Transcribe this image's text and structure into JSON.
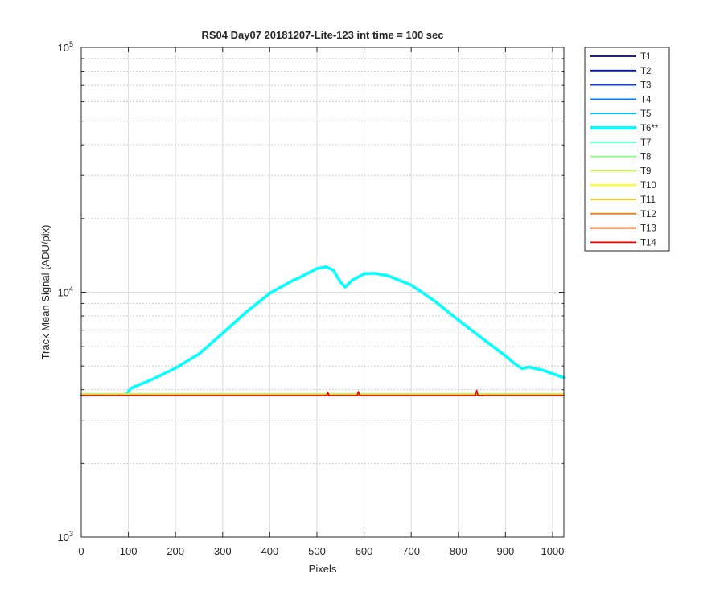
{
  "chart_data": {
    "type": "line",
    "title": "RS04 Day07 20181207-Lite-123 int time = 100 sec",
    "xlabel": "Pixels",
    "ylabel": "Track Mean Signal (ADU/pix)",
    "xlim": [
      0,
      1024
    ],
    "ylim": [
      1000,
      100000
    ],
    "yscale": "log",
    "grid": true,
    "legend_position": "outside-right",
    "xticks": [
      0,
      100,
      200,
      300,
      400,
      500,
      600,
      700,
      800,
      900,
      1000
    ],
    "xtick_labels": [
      "0",
      "100",
      "200",
      "300",
      "400",
      "500",
      "600",
      "700",
      "800",
      "900",
      "1000"
    ],
    "yticks": [
      1000,
      10000,
      100000
    ],
    "ytick_labels": [
      {
        "base": "10",
        "exp": "3"
      },
      {
        "base": "10",
        "exp": "4"
      },
      {
        "base": "10",
        "exp": "5"
      }
    ],
    "series": [
      {
        "name": "T1",
        "color": "#00008f",
        "highlight": false,
        "x": [
          0,
          1024
        ],
        "y": [
          3780,
          3780
        ]
      },
      {
        "name": "T2",
        "color": "#0010c8",
        "highlight": false,
        "x": [
          0,
          1024
        ],
        "y": [
          3780,
          3780
        ]
      },
      {
        "name": "T3",
        "color": "#0040ff",
        "highlight": false,
        "x": [
          0,
          1024
        ],
        "y": [
          3785,
          3785
        ]
      },
      {
        "name": "T4",
        "color": "#0080ff",
        "highlight": false,
        "x": [
          0,
          1024
        ],
        "y": [
          3790,
          3790
        ]
      },
      {
        "name": "T5",
        "color": "#00c0ff",
        "highlight": false,
        "x": [
          0,
          1024
        ],
        "y": [
          3790,
          3790
        ]
      },
      {
        "name": "T6**",
        "color": "#00ffff",
        "highlight": true,
        "x": [
          0,
          95,
          105,
          150,
          200,
          250,
          300,
          350,
          400,
          450,
          460,
          500,
          520,
          535,
          550,
          560,
          575,
          600,
          620,
          650,
          700,
          750,
          800,
          850,
          900,
          920,
          935,
          950,
          980,
          1024
        ],
        "y": [
          3800,
          3810,
          4050,
          4400,
          4900,
          5600,
          6800,
          8300,
          9900,
          11200,
          11400,
          12500,
          12700,
          12300,
          11000,
          10500,
          11200,
          11900,
          11950,
          11700,
          10700,
          9200,
          7700,
          6500,
          5500,
          5100,
          4880,
          4950,
          4800,
          4480
        ]
      },
      {
        "name": "T7",
        "color": "#40ffbf",
        "highlight": false,
        "x": [
          0,
          1024
        ],
        "y": [
          3800,
          3800
        ]
      },
      {
        "name": "T8",
        "color": "#80ff80",
        "highlight": false,
        "x": [
          0,
          1024
        ],
        "y": [
          3850,
          3850
        ]
      },
      {
        "name": "T9",
        "color": "#bfff40",
        "highlight": false,
        "x": [
          0,
          1024
        ],
        "y": [
          3840,
          3840
        ]
      },
      {
        "name": "T10",
        "color": "#ffff00",
        "highlight": false,
        "x": [
          0,
          1024
        ],
        "y": [
          3810,
          3810
        ]
      },
      {
        "name": "T11",
        "color": "#ffbf00",
        "highlight": false,
        "x": [
          0,
          1024
        ],
        "y": [
          3800,
          3800
        ]
      },
      {
        "name": "T12",
        "color": "#ff8000",
        "highlight": false,
        "x": [
          0,
          1024
        ],
        "y": [
          3795,
          3795
        ]
      },
      {
        "name": "T13",
        "color": "#ff4000",
        "highlight": false,
        "x": [
          0,
          1024
        ],
        "y": [
          3790,
          3790
        ]
      },
      {
        "name": "T14",
        "color": "#ee0000",
        "highlight": false,
        "x": [
          0,
          520,
          523,
          526,
          529,
          585,
          588,
          591,
          594,
          836,
          839,
          842,
          845,
          1024
        ],
        "y": [
          3780,
          3780,
          3900,
          3780,
          3780,
          3780,
          3930,
          3780,
          3780,
          3780,
          3980,
          3780,
          3780,
          3780
        ]
      }
    ]
  }
}
